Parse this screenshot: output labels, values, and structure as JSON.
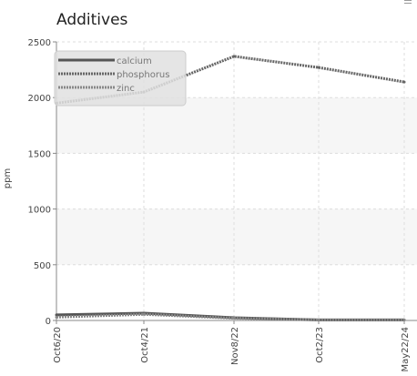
{
  "chart_data": {
    "type": "line",
    "title": "Additives",
    "ylabel": "ppm",
    "xlabel": "",
    "categories": [
      "Oct6/20",
      "Oct4/21",
      "Nov8/22",
      "Oct2/23",
      "May22/24"
    ],
    "ylim": [
      0,
      2500
    ],
    "yticks": [
      0,
      500,
      1000,
      1500,
      2000,
      2500
    ],
    "grid": true,
    "legend_position": "top-left",
    "series": [
      {
        "name": "calcium",
        "values": [
          50,
          65,
          25,
          5,
          5
        ],
        "color": "#555555",
        "style": "solid"
      },
      {
        "name": "phosphorus",
        "values": [
          1950,
          2050,
          2370,
          2270,
          2140
        ],
        "color": "#666666",
        "style": "dotted"
      },
      {
        "name": "zinc",
        "values": [
          30,
          55,
          20,
          5,
          5
        ],
        "color": "#888888",
        "style": "dotted"
      }
    ]
  },
  "toolbar": {
    "menu_icon": "menu-icon"
  }
}
